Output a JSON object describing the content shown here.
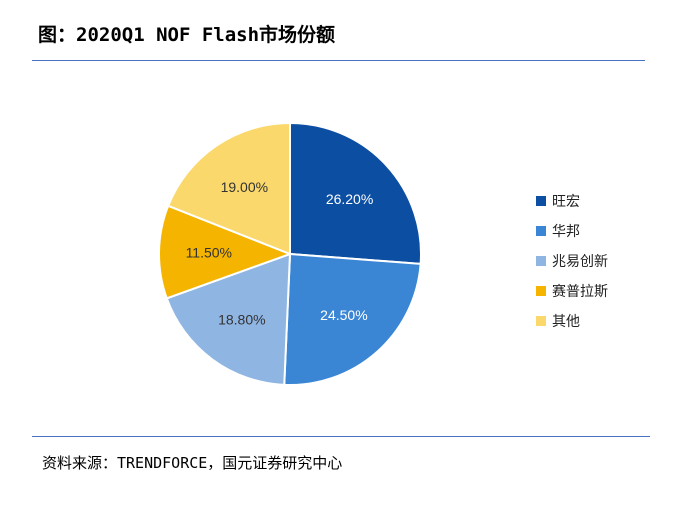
{
  "header": {
    "title": "图：2020Q1 NOF Flash市场份额"
  },
  "footer": {
    "source": "资料来源：TRENDFORCE，国元证券研究中心"
  },
  "chart_data": {
    "type": "pie",
    "title": "",
    "legend_position": "right",
    "slices": [
      {
        "label": "旺宏",
        "value": 26.2,
        "display": "26.20%",
        "color": "#0b4ea2"
      },
      {
        "label": "华邦",
        "value": 24.5,
        "display": "24.50%",
        "color": "#3a86d4"
      },
      {
        "label": "兆易创新",
        "value": 18.8,
        "display": "18.80%",
        "color": "#8fb5e3"
      },
      {
        "label": "赛普拉斯",
        "value": 11.5,
        "display": "11.50%",
        "color": "#f4b400"
      },
      {
        "label": "其他",
        "value": 19.0,
        "display": "19.00%",
        "color": "#fbd86b"
      }
    ],
    "label_colors": [
      "#ffffff",
      "#ffffff",
      "#333333",
      "#333333",
      "#333333"
    ]
  }
}
